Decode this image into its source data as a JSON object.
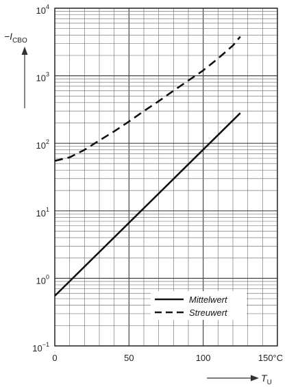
{
  "chart_data": {
    "type": "line",
    "title": "",
    "x": [
      0,
      25,
      50,
      75,
      100,
      125
    ],
    "xlim": [
      0,
      150
    ],
    "x_ticks": [
      {
        "value": 0,
        "label": "0"
      },
      {
        "value": 50,
        "label": "50"
      },
      {
        "value": 100,
        "label": "100"
      },
      {
        "value": 150,
        "label": "150°C"
      }
    ],
    "xlabel": {
      "symbol": "T",
      "sub": "U"
    },
    "ylabel": {
      "symbol": "−I",
      "sub": "CBO"
    },
    "yscale": "log",
    "ylim": [
      0.1,
      10000
    ],
    "y_ticks": [
      {
        "value": 0.1,
        "base": "10",
        "exp": "−1"
      },
      {
        "value": 1,
        "base": "10",
        "exp": "0"
      },
      {
        "value": 10,
        "base": "10",
        "exp": "1"
      },
      {
        "value": 100,
        "base": "10",
        "exp": "2"
      },
      {
        "value": 1000,
        "base": "10",
        "exp": "3"
      },
      {
        "value": 10000,
        "base": "10",
        "exp": "4"
      }
    ],
    "series": [
      {
        "name": "Mittelwert",
        "style": "solid",
        "x": [
          0,
          125
        ],
        "y": [
          0.55,
          280
        ]
      },
      {
        "name": "Streuwert",
        "style": "dashed",
        "x": [
          0,
          10,
          20,
          30,
          40,
          50,
          60,
          70,
          80,
          90,
          100,
          110,
          120,
          125
        ],
        "y": [
          55,
          62,
          80,
          110,
          150,
          210,
          300,
          420,
          600,
          850,
          1200,
          1800,
          2800,
          3800
        ]
      }
    ],
    "grid": true,
    "legend_position": "bottom-right",
    "colors": {
      "line": "#111111",
      "grid": "#7a7a7a",
      "background": "#ffffff"
    }
  }
}
